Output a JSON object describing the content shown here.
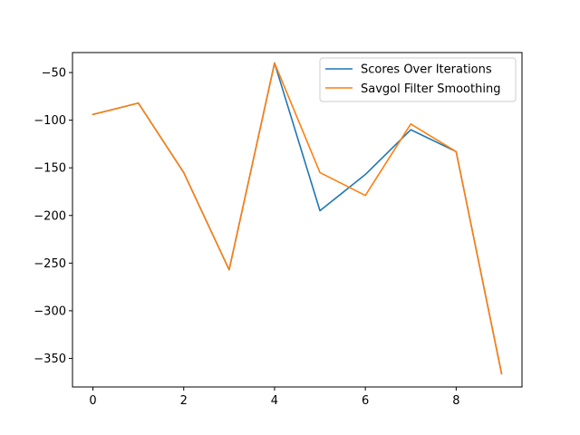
{
  "chart_data": {
    "type": "line",
    "title": "",
    "xlabel": "",
    "ylabel": "",
    "x": [
      0,
      1,
      2,
      3,
      4,
      5,
      6,
      7,
      8,
      9
    ],
    "xlim": [
      -0.45,
      9.45
    ],
    "ylim": [
      -380,
      -29
    ],
    "xticks": [
      0,
      2,
      4,
      6,
      8
    ],
    "yticks": [
      -350,
      -300,
      -250,
      -200,
      -150,
      -100,
      -50
    ],
    "xtick_labels": [
      "0",
      "2",
      "4",
      "6",
      "8"
    ],
    "ytick_labels": [
      "−350",
      "−300",
      "−250",
      "−200",
      "−150",
      "−100",
      "−50"
    ],
    "grid": false,
    "legend_position": "top-right",
    "series": [
      {
        "name": "Scores Over Iterations",
        "color": "#1f77b4",
        "values": [
          -94,
          -82,
          -155,
          -257,
          -40,
          -195,
          -157,
          -110,
          -133,
          -366
        ]
      },
      {
        "name": "Savgol Filter Smoothing",
        "color": "#ff7f0e",
        "values": [
          -94,
          -82,
          -155,
          -257,
          -40,
          -155,
          -179,
          -104,
          -133,
          -366
        ]
      }
    ]
  }
}
